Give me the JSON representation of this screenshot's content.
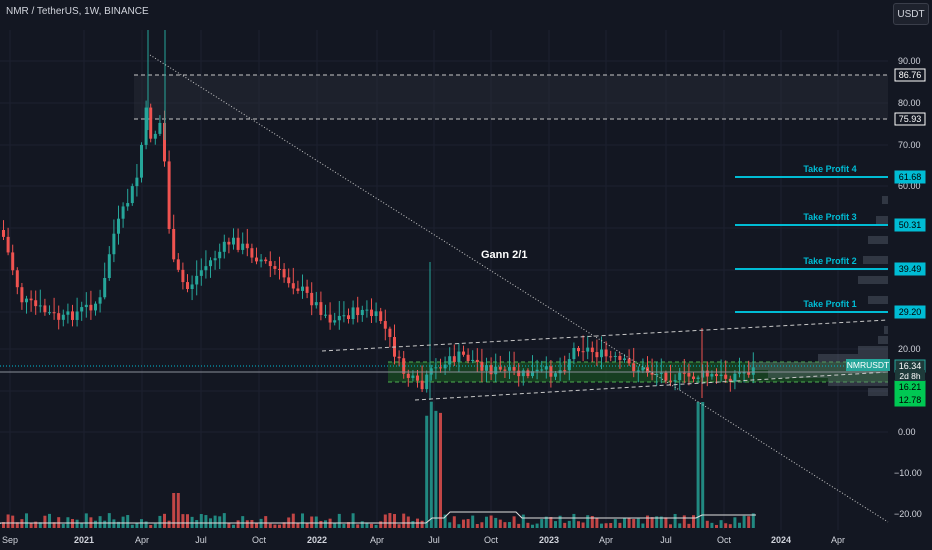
{
  "header": {
    "symbol_line": "NMR / TetherUS, 1W, BINANCE",
    "currency_button": "USDT"
  },
  "colors": {
    "background": "#131722",
    "up": "#26a69a",
    "down": "#ef5350",
    "accent": "#00bcd4",
    "text": "#d1d4dc",
    "green_tag": "#00c853"
  },
  "chart_data": {
    "type": "candlestick",
    "price_axis": {
      "scale": "log",
      "ticks": [
        90,
        80,
        70,
        60,
        50,
        40,
        30,
        20,
        10,
        0
      ]
    },
    "price_tick_labels": [
      "90.00",
      "80.00",
      "70.00",
      "60.00",
      "50.00",
      "40.00",
      "30.00",
      "20.00",
      "10.00",
      "0.00"
    ],
    "volume_tick_labels": [
      "−10.00",
      "−20.00"
    ],
    "x_tick_labels": [
      "Sep",
      "2021",
      "Apr",
      "Jul",
      "Oct",
      "2022",
      "Apr",
      "Jul",
      "Oct",
      "2023",
      "Apr",
      "Jul",
      "Oct",
      "2024",
      "Apr"
    ],
    "x_tick_bold": [
      false,
      true,
      false,
      false,
      false,
      true,
      false,
      false,
      false,
      true,
      false,
      false,
      false,
      true,
      false
    ],
    "price_tags": [
      {
        "label": "86.76",
        "style": "outline"
      },
      {
        "label": "75.93",
        "style": "outline"
      },
      {
        "label": "61.68",
        "style": "cyan"
      },
      {
        "label": "50.31",
        "style": "cyan"
      },
      {
        "label": "39.49",
        "style": "cyan"
      },
      {
        "label": "29.20",
        "style": "cyan"
      },
      {
        "label": "16.34",
        "style": "last"
      },
      {
        "label": "16.21",
        "style": "green"
      },
      {
        "label": "12.78",
        "style": "green"
      }
    ],
    "last_price": {
      "symbol": "NMRUSDT",
      "price": "16.34",
      "countdown": "2d 8h"
    },
    "take_profits": [
      {
        "label": "Take Profit 4",
        "price": 61.68
      },
      {
        "label": "Take Profit 3",
        "price": 50.31
      },
      {
        "label": "Take Profit 2",
        "price": 39.49
      },
      {
        "label": "Take Profit 1",
        "price": 29.2
      }
    ],
    "resistance_zone": {
      "top": 86.76,
      "bottom": 75.93
    },
    "support_zone": {
      "top": 16.21,
      "bottom": 12.78
    },
    "annotations": [
      {
        "text": "Gann 2/1"
      }
    ]
  }
}
